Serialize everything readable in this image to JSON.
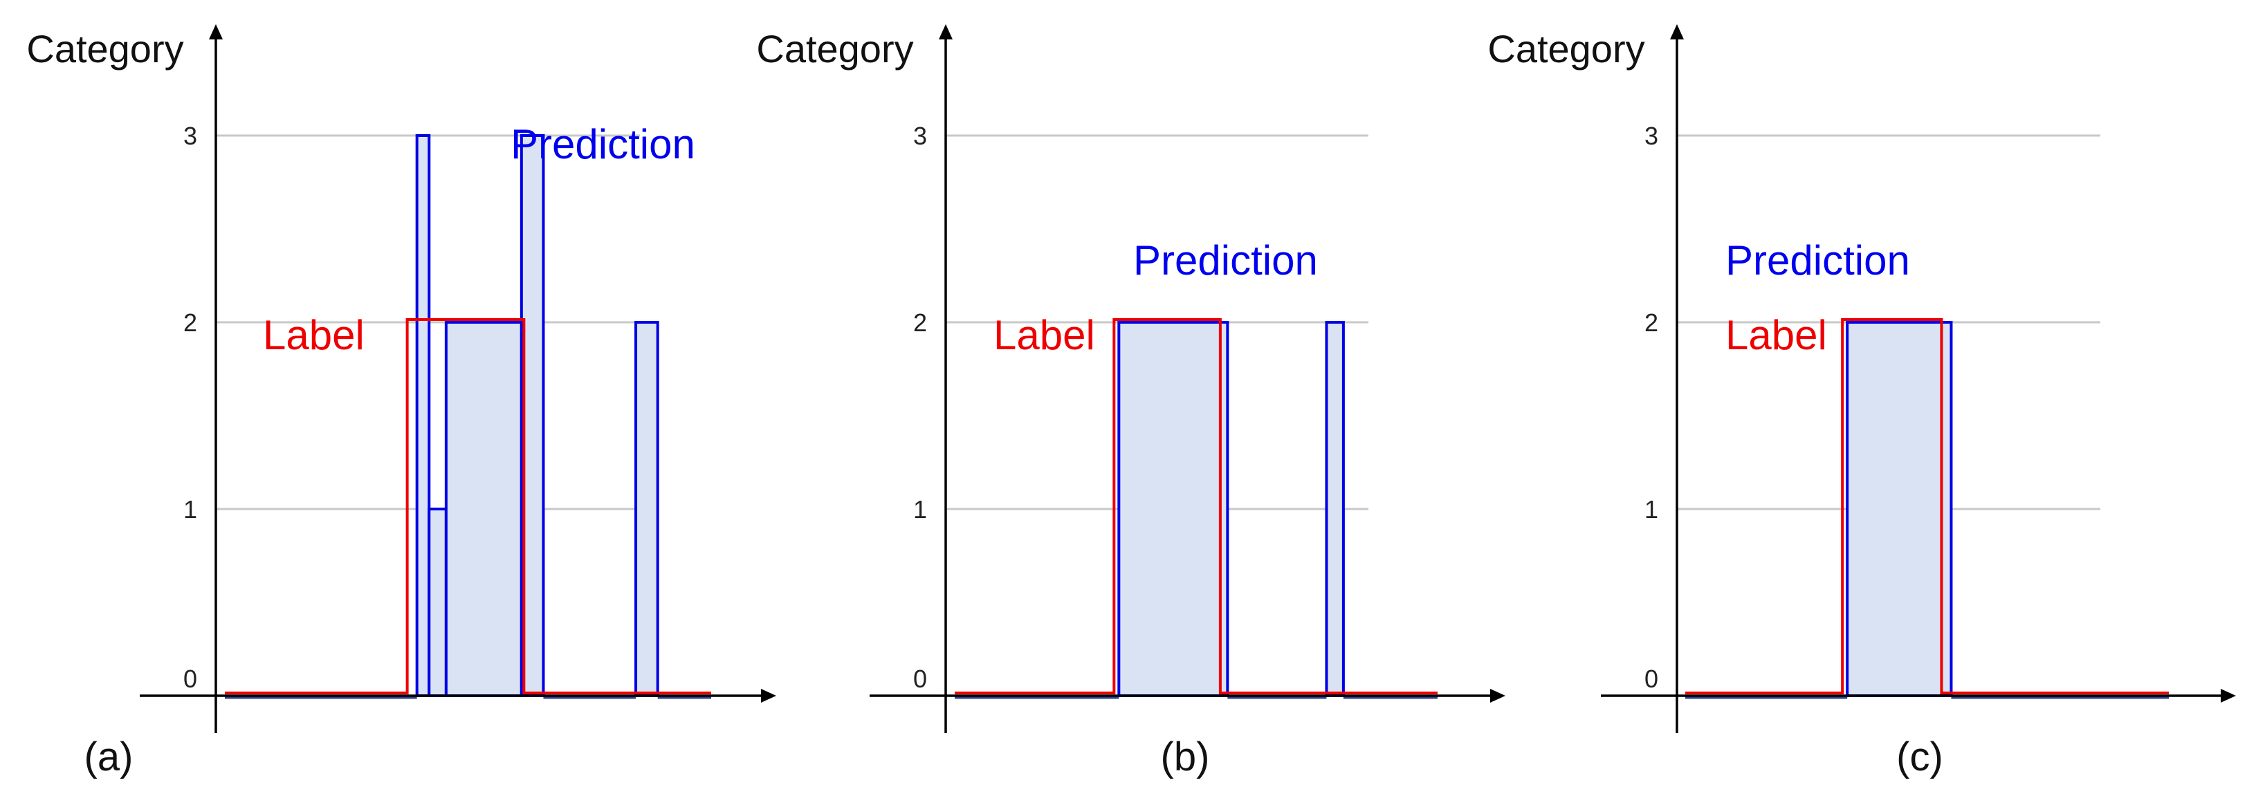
{
  "colors": {
    "prediction": "#0000e6",
    "prediction_fill": "#dae3f3",
    "label": "#ee0000",
    "grid": "#c8c8c8",
    "axis": "#000000"
  },
  "chart_data": [
    {
      "type": "step",
      "panel": "(a)",
      "ylabel": "Category",
      "yticks": [
        "0",
        "1",
        "2",
        "3"
      ],
      "ylim": [
        0,
        3
      ],
      "grid": true,
      "xticks": "none",
      "xlim": [
        0,
        100
      ],
      "annotations": {
        "prediction": "Prediction",
        "label": "Label"
      },
      "label_segments": [
        {
          "x0": 0,
          "x1": 37.5,
          "y": 0
        },
        {
          "x0": 37.5,
          "x1": 61.5,
          "y": 2
        },
        {
          "x0": 61.5,
          "x1": 100,
          "y": 0
        }
      ],
      "prediction_segments": [
        {
          "x0": 0,
          "x1": 39.5,
          "y": 0
        },
        {
          "x0": 39.5,
          "x1": 42,
          "y": 3
        },
        {
          "x0": 42,
          "x1": 45.5,
          "y": 1
        },
        {
          "x0": 45.5,
          "x1": 61,
          "y": 2
        },
        {
          "x0": 61,
          "x1": 65.5,
          "y": 3
        },
        {
          "x0": 65.5,
          "x1": 84.5,
          "y": 0
        },
        {
          "x0": 84.5,
          "x1": 89,
          "y": 2
        },
        {
          "x0": 89,
          "x1": 100,
          "y": 0
        }
      ]
    },
    {
      "type": "step",
      "panel": "(b)",
      "ylabel": "Category",
      "yticks": [
        "0",
        "1",
        "2",
        "3"
      ],
      "ylim": [
        0,
        3
      ],
      "grid": true,
      "xticks": "none",
      "xlim": [
        0,
        100
      ],
      "annotations": {
        "prediction": "Prediction",
        "label": "Label"
      },
      "label_segments": [
        {
          "x0": 0,
          "x1": 33,
          "y": 0
        },
        {
          "x0": 33,
          "x1": 55,
          "y": 2
        },
        {
          "x0": 55,
          "x1": 100,
          "y": 0
        }
      ],
      "prediction_segments": [
        {
          "x0": 0,
          "x1": 34,
          "y": 0
        },
        {
          "x0": 34,
          "x1": 56.5,
          "y": 2
        },
        {
          "x0": 56.5,
          "x1": 77,
          "y": 0
        },
        {
          "x0": 77,
          "x1": 80.5,
          "y": 2
        },
        {
          "x0": 80.5,
          "x1": 100,
          "y": 0
        }
      ]
    },
    {
      "type": "step",
      "panel": "(c)",
      "ylabel": "Category",
      "yticks": [
        "0",
        "1",
        "2",
        "3"
      ],
      "ylim": [
        0,
        3
      ],
      "grid": true,
      "xticks": "none",
      "xlim": [
        0,
        100
      ],
      "annotations": {
        "prediction": "Prediction",
        "label": "Label"
      },
      "label_segments": [
        {
          "x0": 0,
          "x1": 32.5,
          "y": 0
        },
        {
          "x0": 32.5,
          "x1": 53,
          "y": 2
        },
        {
          "x0": 53,
          "x1": 100,
          "y": 0
        }
      ],
      "prediction_segments": [
        {
          "x0": 0,
          "x1": 33.5,
          "y": 0
        },
        {
          "x0": 33.5,
          "x1": 55,
          "y": 2
        },
        {
          "x0": 55,
          "x1": 100,
          "y": 0
        }
      ]
    }
  ]
}
